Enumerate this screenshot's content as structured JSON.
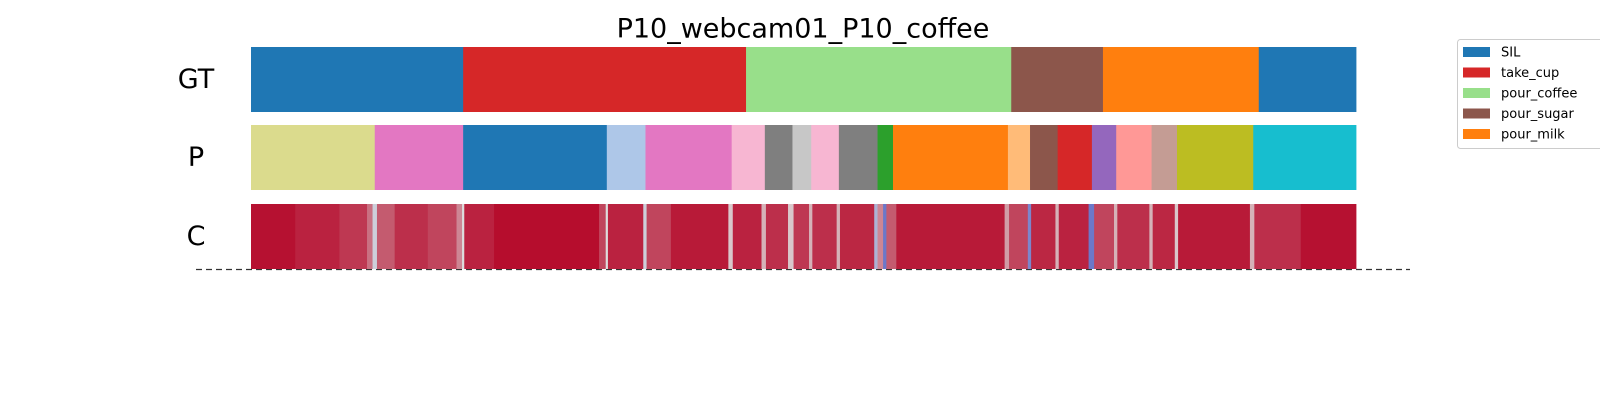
{
  "chart_data": {
    "type": "segmentation",
    "title": "P10_webcam01_P10_coffee",
    "rows": [
      {
        "label": "GT",
        "segments": [
          {
            "start": 0,
            "end": 19.2,
            "color": "#1f77b4"
          },
          {
            "start": 19.2,
            "end": 44.8,
            "color": "#d62728"
          },
          {
            "start": 44.8,
            "end": 68.8,
            "color": "#98df8a"
          },
          {
            "start": 68.8,
            "end": 77.1,
            "color": "#8c564b"
          },
          {
            "start": 77.1,
            "end": 91.2,
            "color": "#ff7f0e"
          },
          {
            "start": 91.2,
            "end": 100,
            "color": "#1f77b4"
          }
        ]
      },
      {
        "label": "P",
        "segments": [
          {
            "start": 0,
            "end": 11.2,
            "color": "#dbdb8d"
          },
          {
            "start": 11.2,
            "end": 19.2,
            "color": "#e377c2"
          },
          {
            "start": 19.2,
            "end": 32.2,
            "color": "#1f77b4"
          },
          {
            "start": 32.2,
            "end": 35.7,
            "color": "#aec7e8"
          },
          {
            "start": 35.7,
            "end": 43.5,
            "color": "#e377c2"
          },
          {
            "start": 43.5,
            "end": 46.5,
            "color": "#f7b6d2"
          },
          {
            "start": 46.5,
            "end": 49.0,
            "color": "#7f7f7f"
          },
          {
            "start": 49.0,
            "end": 50.7,
            "color": "#c7c7c7"
          },
          {
            "start": 50.7,
            "end": 53.2,
            "color": "#f7b6d2"
          },
          {
            "start": 53.2,
            "end": 56.7,
            "color": "#7f7f7f"
          },
          {
            "start": 56.7,
            "end": 58.1,
            "color": "#2ca02c"
          },
          {
            "start": 58.1,
            "end": 68.5,
            "color": "#ff7f0e"
          },
          {
            "start": 68.5,
            "end": 70.5,
            "color": "#ffbb78"
          },
          {
            "start": 70.5,
            "end": 73.0,
            "color": "#8c564b"
          },
          {
            "start": 73.0,
            "end": 76.1,
            "color": "#d62728"
          },
          {
            "start": 76.1,
            "end": 78.3,
            "color": "#9467bd"
          },
          {
            "start": 78.3,
            "end": 81.5,
            "color": "#ff9896"
          },
          {
            "start": 81.5,
            "end": 83.8,
            "color": "#c49c94"
          },
          {
            "start": 83.8,
            "end": 90.7,
            "color": "#bcbd22"
          },
          {
            "start": 90.7,
            "end": 100,
            "color": "#17becf"
          }
        ]
      },
      {
        "label": "C",
        "segments": [
          {
            "start": 0,
            "end": 4,
            "value": 0.97
          },
          {
            "start": 4,
            "end": 8,
            "value": 0.93
          },
          {
            "start": 8,
            "end": 10.5,
            "value": 0.88
          },
          {
            "start": 10.5,
            "end": 11.0,
            "value": 0.75
          },
          {
            "start": 11.0,
            "end": 11.4,
            "value": 0.45
          },
          {
            "start": 11.4,
            "end": 13,
            "value": 0.8
          },
          {
            "start": 13,
            "end": 16,
            "value": 0.9
          },
          {
            "start": 16,
            "end": 18.6,
            "value": 0.85
          },
          {
            "start": 18.6,
            "end": 19.1,
            "value": 0.7
          },
          {
            "start": 19.1,
            "end": 19.3,
            "value": 0.5
          },
          {
            "start": 19.3,
            "end": 22,
            "value": 0.93
          },
          {
            "start": 22,
            "end": 31.5,
            "value": 0.98
          },
          {
            "start": 31.5,
            "end": 32.1,
            "value": 0.85
          },
          {
            "start": 32.1,
            "end": 32.3,
            "value": 0.5
          },
          {
            "start": 32.3,
            "end": 35.5,
            "value": 0.93
          },
          {
            "start": 35.5,
            "end": 35.8,
            "value": 0.45
          },
          {
            "start": 35.8,
            "end": 38,
            "value": 0.85
          },
          {
            "start": 38,
            "end": 43.2,
            "value": 0.95
          },
          {
            "start": 43.2,
            "end": 43.6,
            "value": 0.55
          },
          {
            "start": 43.6,
            "end": 46.2,
            "value": 0.93
          },
          {
            "start": 46.2,
            "end": 46.6,
            "value": 0.6
          },
          {
            "start": 46.6,
            "end": 48.6,
            "value": 0.9
          },
          {
            "start": 48.6,
            "end": 49.1,
            "value": 0.55
          },
          {
            "start": 49.1,
            "end": 50.5,
            "value": 0.88
          },
          {
            "start": 50.5,
            "end": 50.8,
            "value": 0.6
          },
          {
            "start": 50.8,
            "end": 53,
            "value": 0.9
          },
          {
            "start": 53,
            "end": 53.3,
            "value": 0.6
          },
          {
            "start": 53.3,
            "end": 56.4,
            "value": 0.92
          },
          {
            "start": 56.4,
            "end": 56.7,
            "value": 0.35
          },
          {
            "start": 56.7,
            "end": 57.2,
            "value": 0.7
          },
          {
            "start": 57.2,
            "end": 57.5,
            "value": 0.15
          },
          {
            "start": 57.5,
            "end": 58.4,
            "value": 0.8
          },
          {
            "start": 58.4,
            "end": 68.2,
            "value": 0.95
          },
          {
            "start": 68.2,
            "end": 68.6,
            "value": 0.65
          },
          {
            "start": 68.6,
            "end": 70.3,
            "value": 0.85
          },
          {
            "start": 70.3,
            "end": 70.6,
            "value": 0.2
          },
          {
            "start": 70.6,
            "end": 72.8,
            "value": 0.92
          },
          {
            "start": 72.8,
            "end": 73.1,
            "value": 0.6
          },
          {
            "start": 73.1,
            "end": 75.8,
            "value": 0.93
          },
          {
            "start": 75.8,
            "end": 76.3,
            "value": 0.15
          },
          {
            "start": 76.3,
            "end": 78.1,
            "value": 0.85
          },
          {
            "start": 78.1,
            "end": 78.4,
            "value": 0.6
          },
          {
            "start": 78.4,
            "end": 81.3,
            "value": 0.9
          },
          {
            "start": 81.3,
            "end": 81.6,
            "value": 0.6
          },
          {
            "start": 81.6,
            "end": 83.6,
            "value": 0.92
          },
          {
            "start": 83.6,
            "end": 83.9,
            "value": 0.55
          },
          {
            "start": 83.9,
            "end": 90.4,
            "value": 0.95
          },
          {
            "start": 90.4,
            "end": 90.8,
            "value": 0.6
          },
          {
            "start": 90.8,
            "end": 95,
            "value": 0.9
          },
          {
            "start": 95,
            "end": 100,
            "value": 0.97
          }
        ]
      }
    ],
    "legend": [
      {
        "name": "SIL",
        "color": "#1f77b4"
      },
      {
        "name": "take_cup",
        "color": "#d62728"
      },
      {
        "name": "pour_coffee",
        "color": "#98df8a"
      },
      {
        "name": "pour_sugar",
        "color": "#8c564b"
      },
      {
        "name": "pour_milk",
        "color": "#ff7f0e"
      }
    ]
  }
}
